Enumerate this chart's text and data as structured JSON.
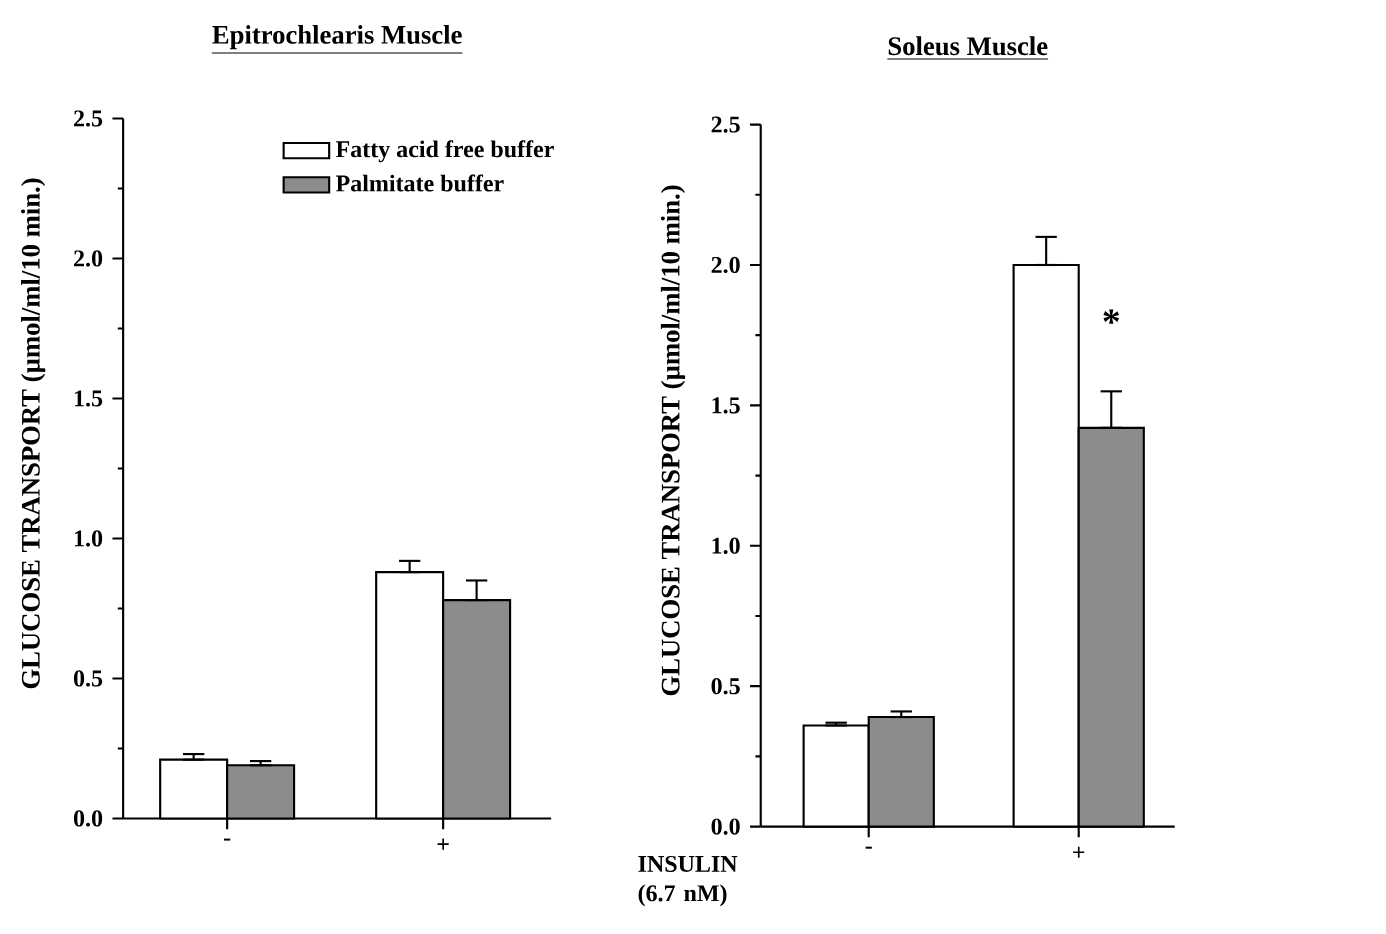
{
  "chart_data": [
    {
      "type": "bar",
      "title": "Epitrochlearis Muscle",
      "ylabel": "GLUCOSE TRANSPORT (µmol/ml/10 min.)",
      "xlabel": "INSULIN (6.7 nM)",
      "categories": [
        "-",
        "+"
      ],
      "series": [
        {
          "name": "Fatty acid free buffer",
          "color": "#ffffff",
          "values": [
            0.21,
            0.88
          ],
          "errors": [
            [
              0.21,
              0.23
            ],
            [
              0.88,
              0.92
            ]
          ]
        },
        {
          "name": "Palmitate buffer",
          "color": "#8c8c8c",
          "values": [
            0.19,
            0.78
          ],
          "errors": [
            [
              0.19,
              0.205
            ],
            [
              0.78,
              0.85
            ]
          ]
        }
      ],
      "ylim": [
        0,
        2.5
      ],
      "yticks": [
        {
          "value": 0,
          "label": "0.0"
        },
        0.5,
        {
          "value": 1,
          "label": "1.0"
        },
        1.5,
        {
          "value": 2,
          "label": "2.0"
        },
        2.5
      ],
      "legend": "top right"
    },
    {
      "type": "bar",
      "title": "Soleus Muscle",
      "ylabel": "GLUCOSE TRANSPORT (µmol/ml/10 min.)",
      "categories": [
        "-",
        "+"
      ],
      "series": [
        {
          "color": "#ffffff",
          "values": [
            0.36,
            2.0
          ],
          "errors": [
            [
              0.36,
              0.37
            ],
            [
              2.0,
              2.1
            ]
          ]
        },
        {
          "color": "#8c8c8c",
          "values": [
            0.39,
            1.42
          ],
          "errors": [
            [
              0.39,
              0.41
            ],
            [
              1.42,
              1.55
            ]
          ]
        }
      ],
      "ylim": [
        0,
        2.5
      ],
      "yticks": [
        {
          "value": 0,
          "label": "0.0"
        },
        0.5,
        {
          "value": 1,
          "label": "1.0"
        },
        1.5,
        {
          "value": 2,
          "label": "2.0"
        },
        2.5
      ],
      "annotations": [
        {
          "text": "*",
          "x": "+",
          "y": 1.72
        }
      ]
    }
  ]
}
